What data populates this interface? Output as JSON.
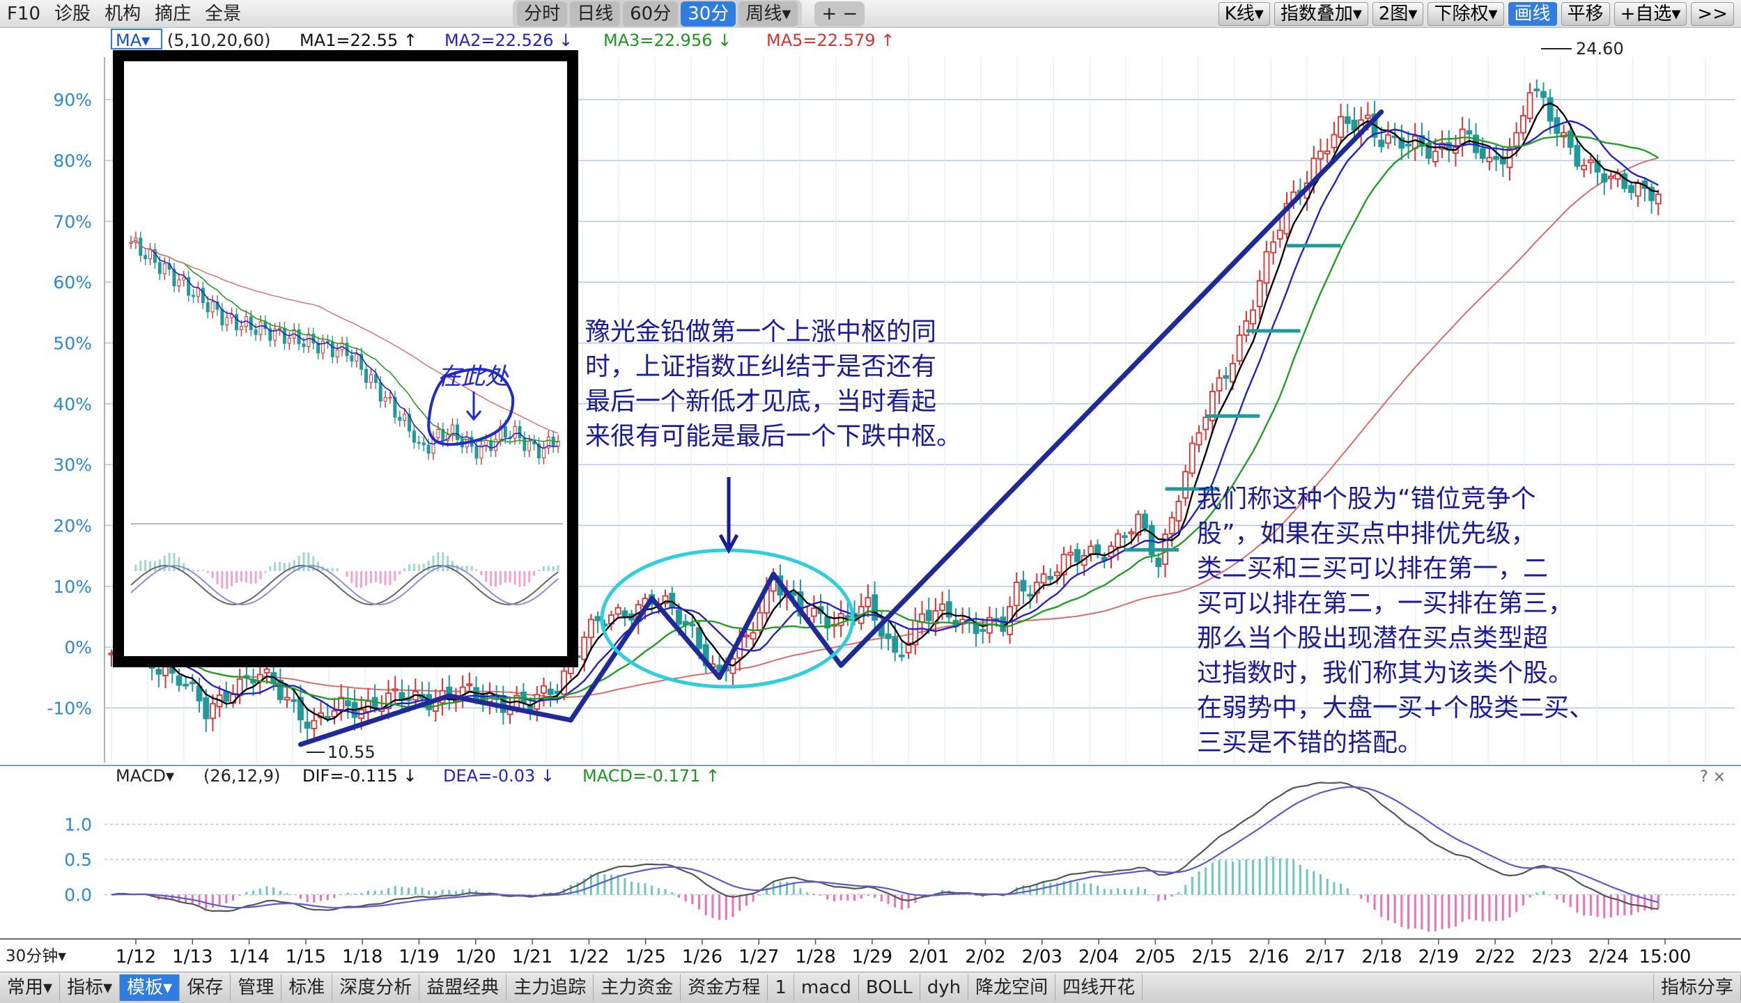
{
  "toolbar": {
    "left_items": [
      "F10",
      "诊股",
      "机构",
      "摘庄",
      "全景"
    ],
    "period_tabs": [
      "分时",
      "日线",
      "60分",
      "30分",
      "周线▾"
    ],
    "active_period": "30分",
    "zoom_buttons": "+ −",
    "right_items": [
      "K线▾",
      "指数叠加▾",
      "2图▾",
      "下除权▾",
      "画线",
      "平移",
      "+自选▾",
      ">>"
    ],
    "active_right": "画线"
  },
  "bottom_tabs": [
    "常用▾",
    "指标▾",
    "模板▾",
    "保存",
    "管理",
    "标准",
    "深度分析",
    "益盟经典",
    "主力追踪",
    "主力资金",
    "资金方程",
    "1",
    "macd",
    "BOLL",
    "dyh",
    "降龙空间",
    "四线开花"
  ],
  "bottom_active": "模板▾",
  "bottom_right": "指标分享",
  "colors": {
    "up": "#e23030",
    "down": "#1f9a9a",
    "ma1": "#000000",
    "ma2": "#2222cc",
    "ma3": "#22a022",
    "ma5": "#e06a6a",
    "trend": "#1e2a9a",
    "ellipse": "#2ad0e0",
    "annotation": "#1a1aa0",
    "grid": "#b0c8ea",
    "axis": "#2a8ad8"
  },
  "ma_legend": {
    "selector": "MA▾",
    "params": "(5,10,20,60)",
    "ma1": "MA1=22.55 ↑",
    "ma2": "MA2=22.526 ↓",
    "ma3": "MA3=22.956 ↓",
    "ma5": "MA5=22.579 ↑"
  },
  "macd_legend": {
    "selector": "MACD▾",
    "params": "(26,12,9)",
    "dif": "DIF=-0.115 ↓",
    "dea": "DEA=-0.03 ↓",
    "macd": "MACD=-0.171 ↑"
  },
  "chart_data": [
    {
      "type": "candlestick",
      "period": "30分钟",
      "y_ticks": [
        "90%",
        "80%",
        "70%",
        "60%",
        "50%",
        "40%",
        "30%",
        "20%",
        "10%",
        "0%",
        "-10%"
      ],
      "ylim_percent": [
        -19,
        97
      ],
      "x_labels": [
        "1/12",
        "1/13",
        "1/14",
        "1/15",
        "1/18",
        "1/19",
        "1/20",
        "1/21",
        "1/22",
        "1/25",
        "1/26",
        "1/27",
        "1/28",
        "1/29",
        "2/01",
        "2/02",
        "2/03",
        "2/04",
        "2/05",
        "2/15",
        "2/16",
        "2/17",
        "2/18",
        "2/19",
        "2/22",
        "2/23",
        "2/24",
        "15:00"
      ],
      "x_axis_label": "30分钟",
      "max_label": "24.60",
      "min_label": "10.55",
      "close_anchors_percent": [
        [
          0,
          -1
        ],
        [
          6,
          -2
        ],
        [
          10,
          -5
        ],
        [
          14,
          -11
        ],
        [
          18,
          -6
        ],
        [
          22,
          -5
        ],
        [
          26,
          -8
        ],
        [
          30,
          -13
        ],
        [
          34,
          -10
        ],
        [
          40,
          -9
        ],
        [
          48,
          -8
        ],
        [
          56,
          -8
        ],
        [
          62,
          -10
        ],
        [
          66,
          -6
        ],
        [
          70,
          2
        ],
        [
          76,
          6
        ],
        [
          80,
          8
        ],
        [
          86,
          3
        ],
        [
          90,
          -5
        ],
        [
          94,
          1
        ],
        [
          98,
          12
        ],
        [
          102,
          5
        ],
        [
          108,
          5
        ],
        [
          112,
          6
        ],
        [
          116,
          -1
        ],
        [
          120,
          5
        ],
        [
          124,
          5
        ],
        [
          128,
          4
        ],
        [
          132,
          3
        ],
        [
          134,
          9
        ],
        [
          140,
          13
        ],
        [
          144,
          15
        ],
        [
          148,
          17
        ],
        [
          152,
          20
        ],
        [
          155,
          14
        ],
        [
          158,
          26
        ],
        [
          162,
          38
        ],
        [
          166,
          48
        ],
        [
          170,
          60
        ],
        [
          174,
          72
        ],
        [
          178,
          80
        ],
        [
          182,
          85
        ],
        [
          186,
          87
        ],
        [
          188,
          84
        ],
        [
          192,
          82
        ],
        [
          196,
          82
        ],
        [
          200,
          84
        ],
        [
          204,
          79
        ],
        [
          208,
          84
        ],
        [
          210,
          92
        ],
        [
          214,
          85
        ],
        [
          218,
          80
        ],
        [
          222,
          76
        ],
        [
          226,
          76
        ],
        [
          229,
          75
        ]
      ],
      "ma_series": [
        {
          "name": "MA1",
          "period": 5
        },
        {
          "name": "MA2",
          "period": 10
        },
        {
          "name": "MA3",
          "period": 20
        },
        {
          "name": "MA5",
          "period": 60
        }
      ],
      "trend_lines_percent": [
        [
          [
            -16,
            0
          ],
          [
            -8,
            0
          ],
          [
            -12,
            0
          ],
          [
            -1,
            0
          ],
          [
            8,
            0
          ],
          [
            -5,
            0
          ],
          [
            12,
            0
          ],
          [
            -3,
            0
          ],
          [
            88,
            0
          ]
        ]
      ]
    },
    {
      "type": "macd",
      "y_ticks": [
        "1.0",
        "0.5",
        "0.0"
      ],
      "ylim": [
        -0.55,
        1.45
      ]
    }
  ],
  "inset": {
    "note": "在此处"
  },
  "annotations": {
    "center": [
      "豫光金铅做第一个上涨中枢的同",
      "时，上证指数正纠结于是否还有",
      "最后一个新低才见底，当时看起",
      "来很有可能是最后一个下跌中枢。"
    ],
    "right": [
      "我们称这种个股为“错位竞争个",
      "股”，如果在买点中排优先级，",
      "类二买和三买可以排在第一，二",
      "买可以排在第二，一买排在第三，",
      "那么当个股出现潜在买点类型超",
      "过指数时，我们称其为该类个股。",
      "在弱势中，大盘一买+个股类二买、",
      "三买是不错的搭配。"
    ]
  }
}
